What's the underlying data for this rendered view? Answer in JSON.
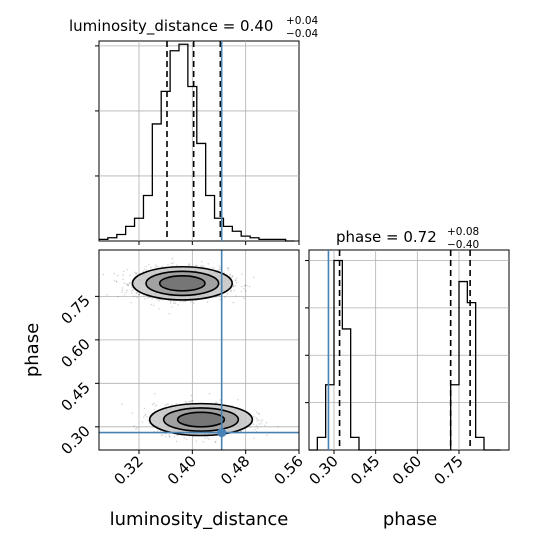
{
  "chart_data": {
    "type": "corner",
    "parameters": [
      "luminosity_distance",
      "phase"
    ],
    "truth": {
      "luminosity_distance": 0.444,
      "phase": 0.28
    },
    "colors": {
      "histogram": "#000000",
      "truth": "#4682b4",
      "grid": "#b0b0b0",
      "samples": "#000000"
    },
    "grid": true,
    "panels": {
      "luminosity_distance": {
        "title": "luminosity_distance = 0.40",
        "title_sup": "+0.04",
        "title_sub": "−0.04",
        "xlim": [
          0.26,
          0.56
        ],
        "quantile_lines": [
          0.362,
          0.402,
          0.442
        ],
        "hist_bins_x": [
          0.26,
          0.2733,
          0.2867,
          0.3,
          0.3133,
          0.3267,
          0.34,
          0.3533,
          0.3667,
          0.38,
          0.3933,
          0.4067,
          0.42,
          0.4333,
          0.4467,
          0.46,
          0.4733,
          0.4867,
          0.5,
          0.5133,
          0.5267,
          0.54,
          0.5533
        ],
        "hist_counts": [
          1,
          2,
          4,
          9,
          14,
          28,
          72,
          92,
          117,
          121,
          95,
          60,
          28,
          14,
          9,
          6,
          3,
          2,
          1,
          1,
          1,
          0
        ],
        "hist_max": 123
      },
      "phase": {
        "title": "phase = 0.72",
        "title_sup": "+0.08",
        "title_sub": "−0.40",
        "xlim": [
          0.21,
          0.93
        ],
        "quantile_lines": [
          0.32,
          0.72,
          0.79
        ],
        "hist_bins_x": [
          0.21,
          0.24,
          0.27,
          0.3,
          0.33,
          0.36,
          0.39,
          0.42,
          0.45,
          0.48,
          0.51,
          0.54,
          0.57,
          0.6,
          0.63,
          0.66,
          0.69,
          0.72,
          0.75,
          0.78,
          0.81,
          0.84,
          0.87,
          0.9
        ],
        "hist_counts": [
          0,
          12,
          62,
          180,
          115,
          12,
          0,
          0,
          0,
          0,
          0,
          0,
          0,
          0,
          0,
          0,
          0,
          62,
          160,
          140,
          12,
          0,
          0
        ],
        "hist_max": 190
      },
      "joint": {
        "xlim": [
          0.26,
          0.56
        ],
        "ylim": [
          0.22,
          0.91
        ],
        "modes": [
          {
            "x": 0.385,
            "y": 0.795,
            "sx": 0.034,
            "sy": 0.026,
            "n": 1700
          },
          {
            "x": 0.413,
            "y": 0.325,
            "sx": 0.035,
            "sy": 0.025,
            "n": 1300
          }
        ],
        "contour_levels": [
          1.0,
          1.6,
          2.2
        ]
      }
    },
    "ticks": {
      "luminosity_distance": [
        "0.32",
        "0.40",
        "0.48",
        "0.56"
      ],
      "phase_x": [
        "0.30",
        "0.45",
        "0.60",
        "0.75"
      ],
      "phase_y": [
        "0.30",
        "0.45",
        "0.60",
        "0.75"
      ]
    },
    "tick_values": {
      "luminosity_distance": [
        0.32,
        0.4,
        0.48,
        0.56
      ],
      "phase": [
        0.3,
        0.45,
        0.6,
        0.75
      ]
    },
    "axis_labels": {
      "luminosity_distance": "luminosity_distance",
      "phase": "phase"
    }
  }
}
